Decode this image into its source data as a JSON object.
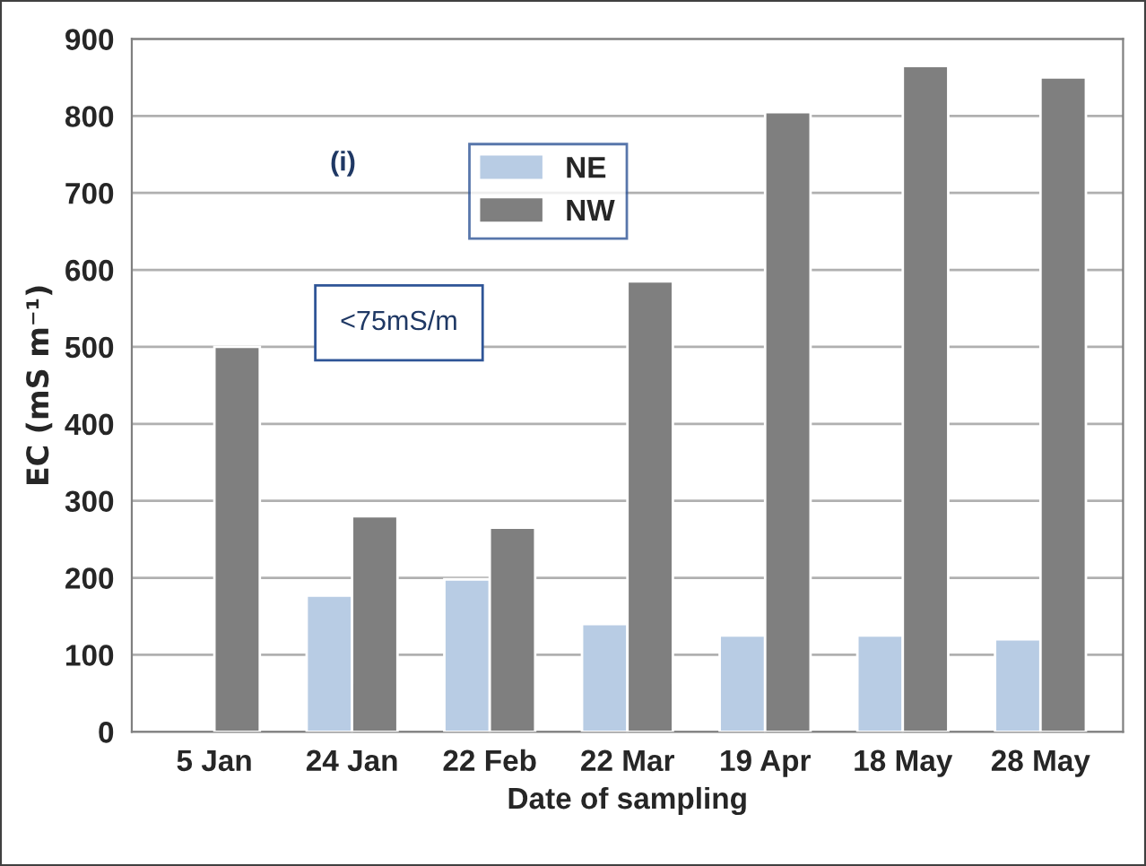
{
  "chart_data": {
    "type": "bar",
    "xlabel": "Date of sampling",
    "ylabel": "EC (mS m⁻¹)",
    "categories": [
      "5 Jan",
      "24 Jan",
      "22 Feb",
      "22 Mar",
      "19 Apr",
      "18 May",
      "28 May"
    ],
    "series": [
      {
        "name": "NE",
        "color": "#b8cce4",
        "values": [
          null,
          177,
          198,
          140,
          125,
          125,
          120
        ]
      },
      {
        "name": "NW",
        "color": "#7f7f7f",
        "values": [
          500,
          280,
          265,
          585,
          805,
          865,
          850
        ]
      }
    ],
    "ylim": [
      0,
      900
    ],
    "yticks": [
      0,
      100,
      200,
      300,
      400,
      500,
      600,
      700,
      800,
      900
    ],
    "grid": "y",
    "legend": "top",
    "annotations": [
      "(i)",
      "<75mS/m"
    ]
  }
}
